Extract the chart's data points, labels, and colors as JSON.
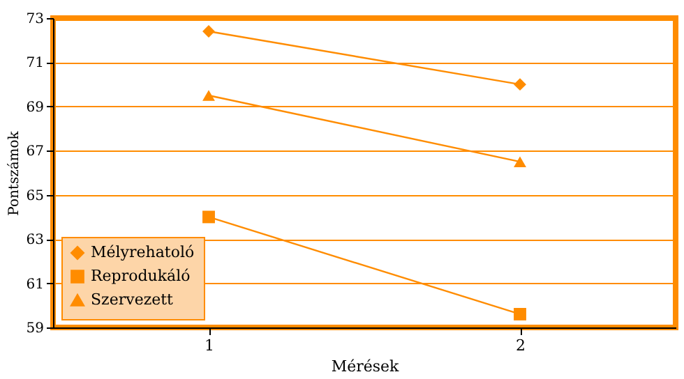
{
  "chart_data": {
    "type": "line",
    "xlabel": "Mérések",
    "ylabel": "Pontszámok",
    "categories": [
      "1",
      "2"
    ],
    "series": [
      {
        "name": "Mélyrehatoló",
        "color": "#ff8c00",
        "marker": "diamond",
        "values": [
          72.4,
          70.0
        ]
      },
      {
        "name": "Reprodukáló",
        "color": "#ff8c00",
        "marker": "square",
        "values": [
          64.0,
          59.6
        ]
      },
      {
        "name": "Szervezett",
        "color": "#ff8c00",
        "marker": "triangle",
        "values": [
          69.5,
          66.5
        ]
      }
    ],
    "ylim": [
      59,
      73
    ],
    "yticks": [
      59,
      61,
      63,
      65,
      67,
      69,
      71,
      73
    ],
    "grid": "y",
    "legend": "bottom left",
    "line_style": "solid"
  }
}
